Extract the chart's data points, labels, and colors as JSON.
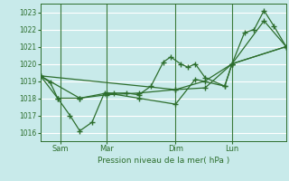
{
  "bg_color": "#c8eaea",
  "grid_color": "#ffffff",
  "line_color": "#2d6e2d",
  "marker_color": "#2d6e2d",
  "ylim": [
    1015.5,
    1023.5
  ],
  "yticks": [
    1016,
    1017,
    1018,
    1019,
    1020,
    1021,
    1022,
    1023
  ],
  "xlabel": "Pression niveau de la mer( hPa )",
  "xlabel_color": "#2d6e2d",
  "tick_color": "#2d6e2d",
  "xtick_labels": [
    "Sam",
    "Mar",
    "Dim",
    "Lun"
  ],
  "xtick_positions": [
    0.08,
    0.27,
    0.55,
    0.78
  ],
  "vline_color": "#3a7a3a",
  "series": [
    [
      0.0,
      1019.3,
      0.04,
      1018.9,
      0.07,
      1018.0,
      0.12,
      1017.0,
      0.16,
      1016.1,
      0.21,
      1016.6,
      0.26,
      1018.3,
      0.3,
      1018.3,
      0.35,
      1018.3,
      0.4,
      1018.2,
      0.45,
      1018.7,
      0.5,
      1020.1,
      0.53,
      1020.4,
      0.57,
      1020.0,
      0.6,
      1019.8,
      0.63,
      1020.0,
      0.67,
      1019.2,
      0.75,
      1018.7,
      0.78,
      1020.0,
      0.83,
      1021.8,
      0.87,
      1022.0,
      0.91,
      1023.1,
      0.95,
      1022.2,
      1.0,
      1021.0
    ],
    [
      0.0,
      1019.3,
      0.07,
      1018.0,
      0.16,
      1018.0,
      0.27,
      1018.2,
      0.4,
      1018.3,
      0.55,
      1018.5,
      0.67,
      1018.6,
      0.78,
      1020.0,
      0.91,
      1022.5,
      1.0,
      1021.0
    ],
    [
      0.0,
      1019.3,
      0.16,
      1018.0,
      0.27,
      1018.3,
      0.4,
      1018.0,
      0.55,
      1017.65,
      0.63,
      1019.1,
      0.75,
      1018.7,
      0.78,
      1020.0,
      1.0,
      1021.0
    ],
    [
      0.0,
      1019.3,
      0.55,
      1018.5,
      0.67,
      1019.0,
      0.78,
      1020.0,
      1.0,
      1021.0
    ]
  ]
}
